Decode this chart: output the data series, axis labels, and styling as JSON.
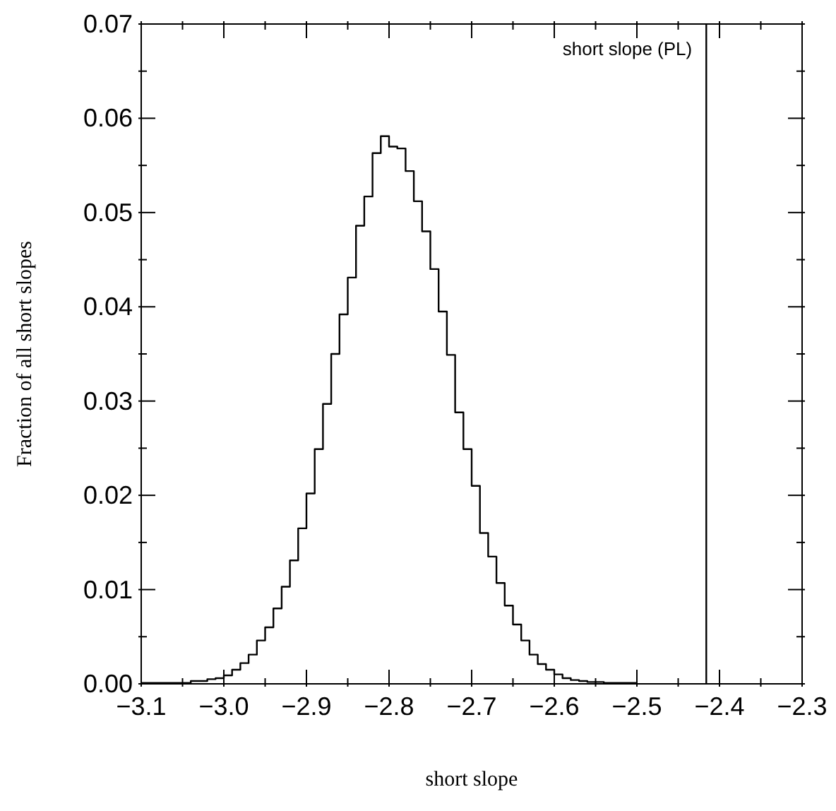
{
  "chart_data": {
    "type": "histogram",
    "xlabel": "short slope",
    "ylabel": "Fraction of all short slopes",
    "bins": [
      -3.1,
      -3.09,
      -3.08,
      -3.07,
      -3.06,
      -3.05,
      -3.04,
      -3.03,
      -3.02,
      -3.01,
      -3.0,
      -2.99,
      -2.98,
      -2.97,
      -2.96,
      -2.95,
      -2.94,
      -2.93,
      -2.92,
      -2.91,
      -2.9,
      -2.89,
      -2.88,
      -2.87,
      -2.86,
      -2.85,
      -2.84,
      -2.83,
      -2.82,
      -2.81,
      -2.8,
      -2.79,
      -2.78,
      -2.77,
      -2.76,
      -2.75,
      -2.74,
      -2.73,
      -2.72,
      -2.71,
      -2.7,
      -2.69,
      -2.68,
      -2.67,
      -2.66,
      -2.65,
      -2.64,
      -2.63,
      -2.62,
      -2.61,
      -2.6,
      -2.59,
      -2.58,
      -2.57,
      -2.56,
      -2.55,
      -2.54,
      -2.53,
      -2.52,
      -2.51,
      -2.5
    ],
    "values": [
      0.0001,
      0.0001,
      0.0001,
      0.0001,
      0.0001,
      0.0001,
      0.0003,
      0.0003,
      0.0005,
      0.0006,
      0.0009,
      0.0015,
      0.0022,
      0.0031,
      0.0046,
      0.006,
      0.008,
      0.0103,
      0.0131,
      0.0165,
      0.0202,
      0.0249,
      0.0297,
      0.035,
      0.0392,
      0.0431,
      0.0486,
      0.0517,
      0.0563,
      0.0581,
      0.057,
      0.0568,
      0.0544,
      0.0512,
      0.048,
      0.044,
      0.0395,
      0.0349,
      0.0288,
      0.0249,
      0.021,
      0.016,
      0.0135,
      0.0107,
      0.0083,
      0.0063,
      0.0046,
      0.0031,
      0.0021,
      0.0015,
      0.001,
      0.0006,
      0.0004,
      0.0003,
      0.0002,
      0.0002,
      0.0001,
      0.0001,
      0.0001,
      0.0001
    ],
    "color": "#000000",
    "xlim": [
      -3.1,
      -2.3
    ],
    "xticks": [
      {
        "value": -3.1,
        "label": "−3.1"
      },
      {
        "value": -3.05,
        "label": null
      },
      {
        "value": -3.0,
        "label": "−3.0"
      },
      {
        "value": -2.95,
        "label": null
      },
      {
        "value": -2.9,
        "label": "−2.9"
      },
      {
        "value": -2.85,
        "label": null
      },
      {
        "value": -2.8,
        "label": "−2.8"
      },
      {
        "value": -2.75,
        "label": null
      },
      {
        "value": -2.7,
        "label": "−2.7"
      },
      {
        "value": -2.65,
        "label": null
      },
      {
        "value": -2.6,
        "label": "−2.6"
      },
      {
        "value": -2.55,
        "label": null
      },
      {
        "value": -2.5,
        "label": "−2.5"
      },
      {
        "value": -2.45,
        "label": null
      },
      {
        "value": -2.4,
        "label": "−2.4"
      },
      {
        "value": -2.35,
        "label": null
      },
      {
        "value": -2.3,
        "label": "−2.3"
      }
    ],
    "ylim": [
      0,
      0.07
    ],
    "yticks": [
      {
        "value": 0,
        "label": "0.00"
      },
      {
        "value": 0.005,
        "label": null
      },
      {
        "value": 0.01,
        "label": "0.01"
      },
      {
        "value": 0.015,
        "label": null
      },
      {
        "value": 0.02,
        "label": "0.02"
      },
      {
        "value": 0.025,
        "label": null
      },
      {
        "value": 0.03,
        "label": "0.03"
      },
      {
        "value": 0.035,
        "label": null
      },
      {
        "value": 0.04,
        "label": "0.04"
      },
      {
        "value": 0.045,
        "label": null
      },
      {
        "value": 0.05,
        "label": "0.05"
      },
      {
        "value": 0.055,
        "label": null
      },
      {
        "value": 0.06,
        "label": "0.06"
      },
      {
        "value": 0.065,
        "label": null
      },
      {
        "value": 0.07,
        "label": "0.07"
      }
    ],
    "ref_lines": [
      {
        "axis": "x",
        "value": -2.416,
        "label": "short slope (PL)",
        "color": "#000000"
      }
    ],
    "grid": false,
    "legend": false
  }
}
